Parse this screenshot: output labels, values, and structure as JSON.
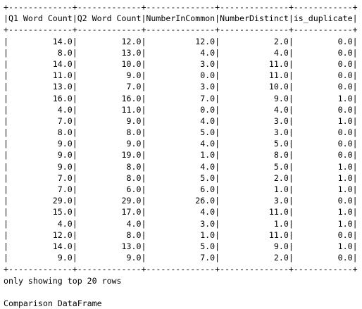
{
  "console": {
    "headers": [
      "Q1 Word Count",
      "Q2 Word Count",
      "NumberInCommon",
      "NumberDistinct",
      "is_duplicate"
    ],
    "rows": [
      [
        "14.0",
        "12.0",
        "12.0",
        "2.0",
        "0.0"
      ],
      [
        "8.0",
        "13.0",
        "4.0",
        "4.0",
        "0.0"
      ],
      [
        "14.0",
        "10.0",
        "3.0",
        "11.0",
        "0.0"
      ],
      [
        "11.0",
        "9.0",
        "0.0",
        "11.0",
        "0.0"
      ],
      [
        "13.0",
        "7.0",
        "3.0",
        "10.0",
        "0.0"
      ],
      [
        "16.0",
        "16.0",
        "7.0",
        "9.0",
        "1.0"
      ],
      [
        "4.0",
        "11.0",
        "0.0",
        "4.0",
        "0.0"
      ],
      [
        "7.0",
        "9.0",
        "4.0",
        "3.0",
        "1.0"
      ],
      [
        "8.0",
        "8.0",
        "5.0",
        "3.0",
        "0.0"
      ],
      [
        "9.0",
        "9.0",
        "4.0",
        "5.0",
        "0.0"
      ],
      [
        "9.0",
        "19.0",
        "1.0",
        "8.0",
        "0.0"
      ],
      [
        "9.0",
        "8.0",
        "4.0",
        "5.0",
        "1.0"
      ],
      [
        "7.0",
        "8.0",
        "5.0",
        "2.0",
        "1.0"
      ],
      [
        "7.0",
        "6.0",
        "6.0",
        "1.0",
        "1.0"
      ],
      [
        "29.0",
        "29.0",
        "26.0",
        "3.0",
        "0.0"
      ],
      [
        "15.0",
        "17.0",
        "4.0",
        "11.0",
        "1.0"
      ],
      [
        "4.0",
        "4.0",
        "3.0",
        "1.0",
        "1.0"
      ],
      [
        "12.0",
        "8.0",
        "1.0",
        "11.0",
        "0.0"
      ],
      [
        "14.0",
        "13.0",
        "5.0",
        "9.0",
        "1.0"
      ],
      [
        "9.0",
        "9.0",
        "7.0",
        "2.0",
        "0.0"
      ]
    ],
    "footer_message": "only showing top 20 rows",
    "caption": "Comparison DataFrame"
  }
}
